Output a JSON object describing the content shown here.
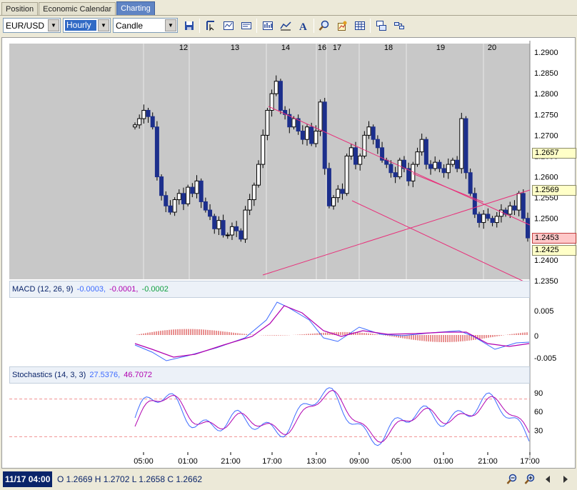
{
  "tabs": [
    {
      "label": "Position",
      "active": false
    },
    {
      "label": "Economic Calendar",
      "active": false
    },
    {
      "label": "Charting",
      "active": true
    }
  ],
  "toolbar": {
    "symbol": "EUR/USD",
    "timeframe": "Hourly",
    "chart_style": "Candle",
    "buttons": [
      "save-icon",
      "cursor-tool-icon",
      "chart-settings-icon",
      "template-icon",
      "bar-chart-icon",
      "line-chart-icon",
      "text-tool-icon",
      "zoom-icon",
      "indicator-icon",
      "data-table-icon",
      "window-icon",
      "layout-icon"
    ]
  },
  "indicators": {
    "macd": {
      "name": "MACD (12, 26, 9)",
      "v1": "-0.0003,",
      "v2": "-0.0001,",
      "v3": "-0.0002"
    },
    "stoch": {
      "name": "Stochastics (14, 3, 3)",
      "v1": "27.5376,",
      "v2": "46.7072"
    }
  },
  "colors": {
    "candle_up": "#FFFFFF",
    "candle_down": "#1C2F8C",
    "trendline": "#E8307A",
    "macd_line": "#3D6BFF",
    "signal_line": "#B000B0",
    "hist": "#D02020",
    "stoch_k": "#3D6BFF",
    "stoch_d": "#B000B0"
  },
  "price_tags": [
    {
      "value": "1.2657",
      "style": "yellow"
    },
    {
      "value": "1.2569",
      "style": "yellow"
    },
    {
      "value": "1.2453",
      "style": "red"
    },
    {
      "value": "1.2425",
      "style": "yellow"
    }
  ],
  "status": {
    "datetime": "11/17 04:00",
    "ohlc": "O 1.2669  H 1.2702  L 1.2658  C 1.2662"
  },
  "chart_data": {
    "type": "candlestick",
    "symbol": "EUR/USD",
    "timeframe": "Hourly",
    "price_axis": {
      "ylim": [
        1.235,
        1.29
      ],
      "ticks": [
        "1.2900",
        "1.2850",
        "1.2800",
        "1.2750",
        "1.2700",
        "1.2650",
        "1.2600",
        "1.2550",
        "1.2500",
        "1.2450",
        "1.2400",
        "1.2350"
      ]
    },
    "day_labels": [
      "12",
      "13",
      "14",
      "16",
      "17",
      "18",
      "19",
      "20"
    ],
    "time_labels": [
      "05:00",
      "01:00",
      "21:00",
      "17:00",
      "13:00",
      "09:00",
      "05:00",
      "01:00",
      "21:00",
      "17:00"
    ],
    "ohlc_closes": [
      1.2725,
      1.274,
      1.276,
      1.2745,
      1.272,
      1.26,
      1.2555,
      1.253,
      1.2515,
      1.2545,
      1.256,
      1.2535,
      1.2575,
      1.256,
      1.259,
      1.254,
      1.252,
      1.2505,
      1.2475,
      1.2495,
      1.246,
      1.246,
      1.248,
      1.247,
      1.245,
      1.252,
      1.2545,
      1.258,
      1.263,
      1.27,
      1.276,
      1.28,
      1.283,
      1.276,
      1.275,
      1.272,
      1.274,
      1.271,
      1.269,
      1.272,
      1.268,
      1.271,
      1.278,
      1.262,
      1.253,
      1.255,
      1.257,
      1.256,
      1.265,
      1.267,
      1.263,
      1.265,
      1.27,
      1.272,
      1.269,
      1.267,
      1.264,
      1.263,
      1.261,
      1.26,
      1.264,
      1.262,
      1.259,
      1.263,
      1.266,
      1.269,
      1.263,
      1.262,
      1.2635,
      1.262,
      1.261,
      1.263,
      1.264,
      1.262,
      1.274,
      1.261,
      1.256,
      1.251,
      1.249,
      1.251,
      1.25,
      1.249,
      1.2505,
      1.252,
      1.251,
      1.253,
      1.252,
      1.256,
      1.25,
      1.2453
    ],
    "macd_axis": {
      "ticks": [
        "0.005",
        "0",
        "-0.005"
      ]
    },
    "stoch_axis": {
      "ticks": [
        "90",
        "60",
        "30"
      ]
    }
  }
}
